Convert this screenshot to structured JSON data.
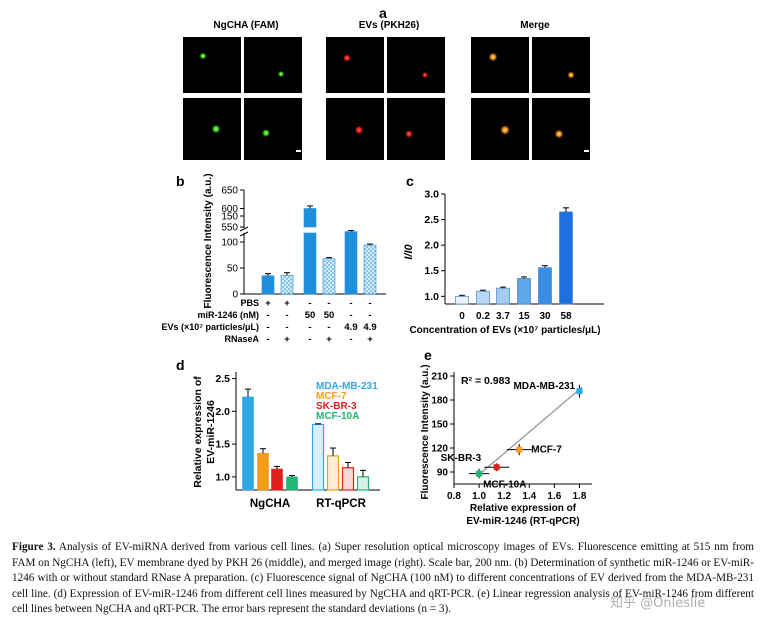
{
  "panel_a": {
    "letter": "a",
    "col_titles": [
      "NgCHA (FAM)",
      "EVs (PKH26)",
      "Merge"
    ]
  },
  "chart_data": [
    {
      "panel": "b",
      "type": "bar",
      "ylabel": "Fluorescence Intensity (a.u.)",
      "y_ticks_lower": [
        "0",
        "50",
        "100",
        "150"
      ],
      "y_ticks_upper": [
        "550",
        "600",
        "650"
      ],
      "categories": [
        "1",
        "2",
        "3",
        "4",
        "5",
        "6"
      ],
      "values": [
        35,
        36,
        600,
        68,
        120,
        94
      ],
      "errors": [
        4,
        5,
        7,
        2,
        2,
        2
      ],
      "hatched": [
        false,
        true,
        false,
        true,
        false,
        true
      ],
      "condition_rows": [
        {
          "label": "PBS",
          "vals": [
            "+",
            "+",
            "-",
            "-",
            "-",
            "-"
          ]
        },
        {
          "label": "miR-1246 (nM)",
          "vals": [
            "-",
            "-",
            "50",
            "50",
            "-",
            "-"
          ]
        },
        {
          "label": "EVs (×10⁷ particles/μL)",
          "vals": [
            "-",
            "-",
            "-",
            "-",
            "4.9",
            "4.9"
          ]
        },
        {
          "label": "RNaseA",
          "vals": [
            "-",
            "+",
            "-",
            "+",
            "-",
            "+"
          ]
        }
      ],
      "color": "#1e8fdc"
    },
    {
      "panel": "c",
      "type": "bar",
      "ylabel": "I/I0",
      "xlabel": "Concentration of EVs (×10⁷ particles/μL)",
      "categories": [
        "0",
        "0.2",
        "3.7",
        "15",
        "30",
        "58"
      ],
      "values": [
        1.0,
        1.1,
        1.16,
        1.35,
        1.56,
        2.65
      ],
      "errors": [
        0.02,
        0.02,
        0.02,
        0.03,
        0.04,
        0.08
      ],
      "y_ticks": [
        "1.0",
        "1.5",
        "2.0",
        "2.5",
        "3.0"
      ],
      "ylim": [
        0.85,
        3.0
      ],
      "colors": [
        "#eef3fb",
        "#b9d7f2",
        "#a5cbef",
        "#5fa8e8",
        "#3b8ee6",
        "#1e6fe0"
      ]
    },
    {
      "panel": "d",
      "type": "bar",
      "ylabel": "Relative expression of EV-miR-1246",
      "categories": [
        "NgCHA",
        "RT-qPCR"
      ],
      "series": [
        {
          "name": "MDA-MB-231",
          "values": [
            2.22,
            1.8
          ],
          "errors": [
            0.12,
            0.01
          ]
        },
        {
          "name": "MCF-7",
          "values": [
            1.36,
            1.32
          ],
          "errors": [
            0.07,
            0.12
          ]
        },
        {
          "name": "SK-BR-3",
          "values": [
            1.12,
            1.14
          ],
          "errors": [
            0.04,
            0.08
          ]
        },
        {
          "name": "MCF-10A",
          "values": [
            1.0,
            1.0
          ],
          "errors": [
            0.02,
            0.1
          ]
        }
      ],
      "legend_colors": [
        "#2fa8e8",
        "#f39c1f",
        "#e0201b",
        "#22b573"
      ],
      "y_ticks": [
        "1.0",
        "1.5",
        "2.0",
        "2.5"
      ],
      "ylim": [
        0.8,
        2.6
      ]
    },
    {
      "panel": "e",
      "type": "scatter",
      "ylabel": "Fluorescence Intensity (a.u.)",
      "xlabel": "Relative expression of EV-miR-1246 (RT-qPCR)",
      "annotation": "R² = 0.983",
      "points": [
        {
          "name": "MDA-MB-231",
          "x": 1.8,
          "y": 191,
          "color": "#2fa8e8"
        },
        {
          "name": "MCF-7",
          "x": 1.32,
          "y": 118,
          "color": "#f39c1f"
        },
        {
          "name": "SK-BR-3",
          "x": 1.14,
          "y": 96,
          "color": "#e0201b"
        },
        {
          "name": "MCF-10A",
          "x": 1.0,
          "y": 88,
          "color": "#22b573"
        }
      ],
      "x_ticks": [
        "0.8",
        "1.0",
        "1.2",
        "1.4",
        "1.6",
        "1.8"
      ],
      "y_ticks": [
        "90",
        "120",
        "150",
        "180",
        "210"
      ],
      "xlim": [
        0.8,
        1.9
      ],
      "ylim": [
        75,
        215
      ]
    }
  ],
  "panel_letters": [
    "b",
    "c",
    "d",
    "e"
  ],
  "caption": {
    "label": "Figure 3.",
    "text": " Analysis of EV-miRNA derived from various cell lines. (a) Super resolution optical microscopy images of EVs. Fluorescence emitting at 515 nm from FAM on NgCHA (left), EV membrane dyed by PKH 26 (middle), and merged image (right). Scale bar, 200 nm. (b) Determination of synthetic miR-1246 or EV-miR-1246 with or without standard RNase A preparation. (c) Fluorescence signal of NgCHA (100 nM) to different concentrations of EV derived from the MDA-MB-231 cell line. (d) Expression of EV-miR-1246 from different cell lines measured by NgCHA and qRT-PCR. (e) Linear regression analysis of EV-miR-1246 from different cell lines between NgCHA and qRT-PCR. The error bars represent the standard deviations (n = 3)."
  },
  "watermark": "知乎 @Onleslie"
}
